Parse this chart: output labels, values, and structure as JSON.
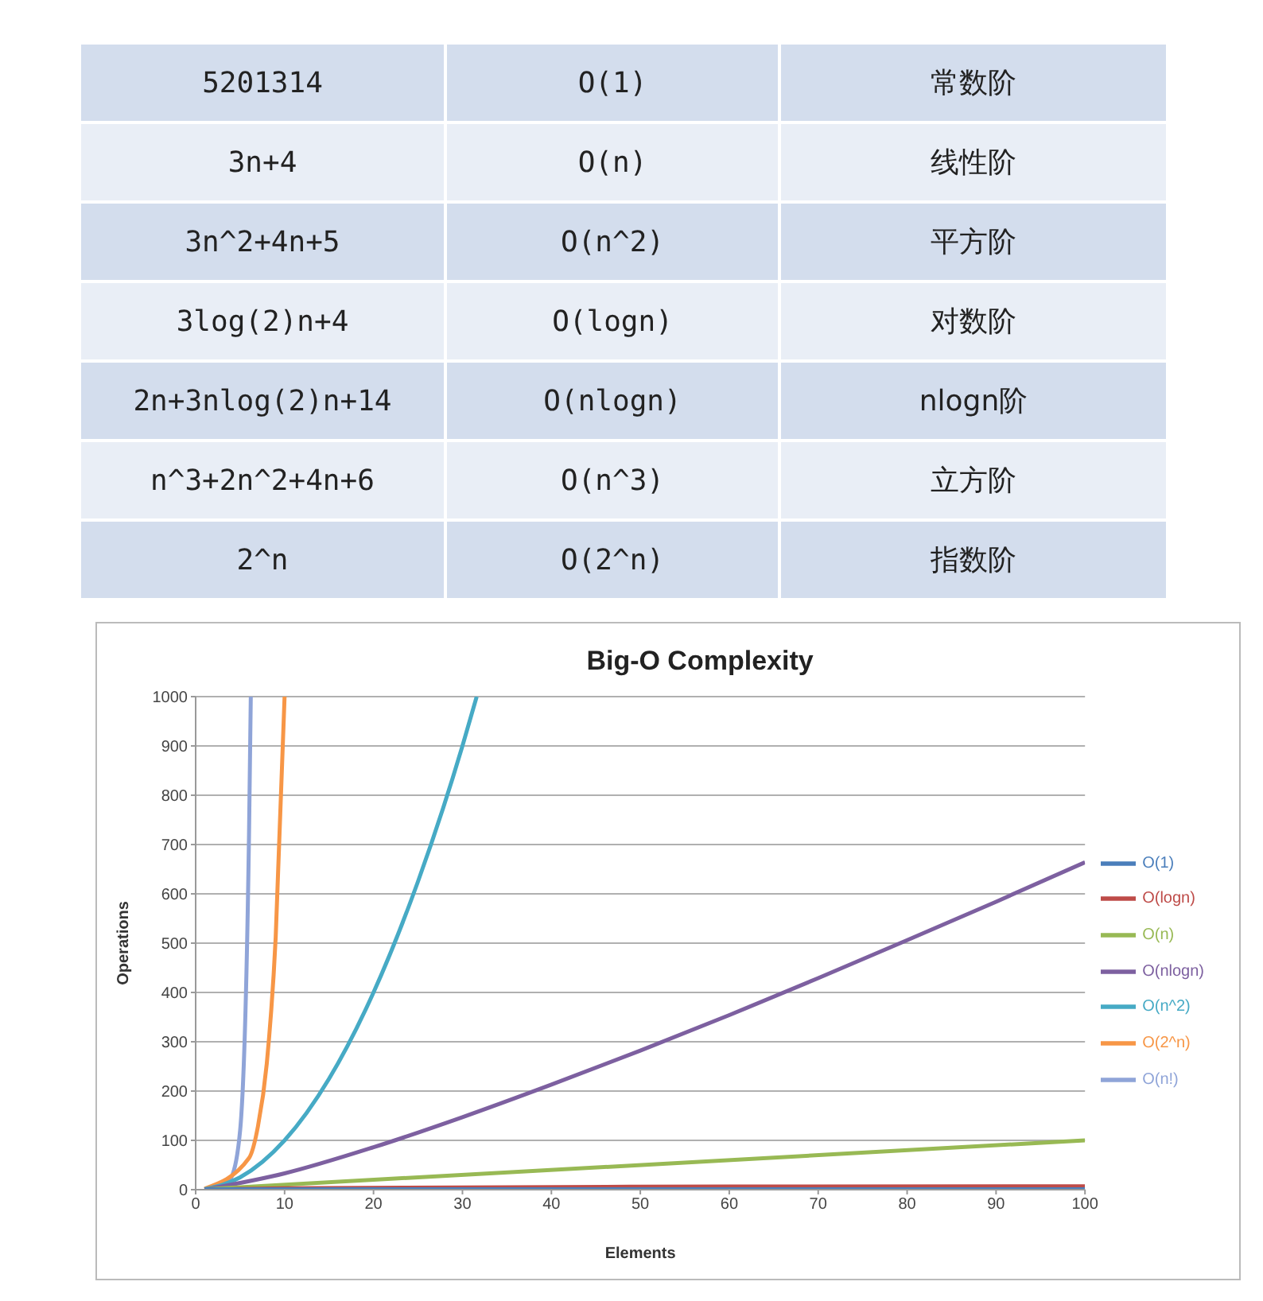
{
  "chart_data": [
    {
      "type": "other",
      "annotations": [
        "5201314",
        "O(1)",
        "常数阶",
        "3n+4",
        "O(n)",
        "线性阶",
        "3n^2+4n+5",
        "O(n^2)",
        "平方阶",
        "3log(2)n+4",
        "O(logn)",
        "对数阶",
        "2n+3nlog(2)n+14",
        "O(nlogn)",
        "nlogn阶",
        "n^3+2n^2+4n+6",
        "O(n^3)",
        "立方阶",
        "2^n",
        "O(2^n)",
        "指数阶"
      ]
    },
    {
      "type": "line",
      "title": "Big-O Complexity",
      "xlabel": "Elements",
      "ylabel": "Operations",
      "xlim": [
        0,
        100
      ],
      "xticks": [
        0,
        10,
        20,
        30,
        40,
        50,
        60,
        70,
        80,
        90,
        100
      ],
      "ylim": [
        0,
        1000
      ],
      "yticks": [
        0,
        100,
        200,
        300,
        400,
        500,
        600,
        700,
        800,
        900,
        1000
      ],
      "grid": "y",
      "legend": "right",
      "marker": "none",
      "line_style": "solid",
      "series": [
        {
          "name": "O(1)",
          "color": "#4a7ebb",
          "x": [
            1,
            100
          ],
          "values": [
            1,
            1
          ]
        },
        {
          "name": "O(logn)",
          "color": "#be4b48",
          "x": [
            1,
            10,
            50,
            100
          ],
          "values": [
            0,
            3,
            6,
            7
          ]
        },
        {
          "name": "O(n)",
          "color": "#98b954",
          "x": [
            1,
            100
          ],
          "values": [
            1,
            100
          ]
        },
        {
          "name": "O(nlogn)",
          "color": "#7d60a0",
          "x": [
            1,
            10,
            20,
            30,
            40,
            50,
            60,
            70,
            80,
            90,
            100
          ],
          "values": [
            0,
            33,
            86,
            147,
            213,
            282,
            354,
            429,
            506,
            584,
            664
          ]
        },
        {
          "name": "O(n^2)",
          "color": "#46aac5",
          "x": [
            1,
            5,
            10,
            15,
            20,
            25,
            30,
            31.6
          ],
          "values": [
            1,
            25,
            100,
            225,
            400,
            625,
            900,
            1000
          ]
        },
        {
          "name": "O(2^n)",
          "color": "#f79646",
          "x": [
            1,
            6,
            7,
            8,
            9,
            10
          ],
          "values": [
            2,
            64,
            128,
            256,
            512,
            1000
          ]
        },
        {
          "name": "O(n!)",
          "color": "#8fa4d8",
          "x": [
            1,
            2,
            3,
            4,
            5,
            6,
            6.2
          ],
          "values": [
            1,
            2,
            6,
            24,
            120,
            720,
            1000
          ]
        }
      ]
    }
  ]
}
